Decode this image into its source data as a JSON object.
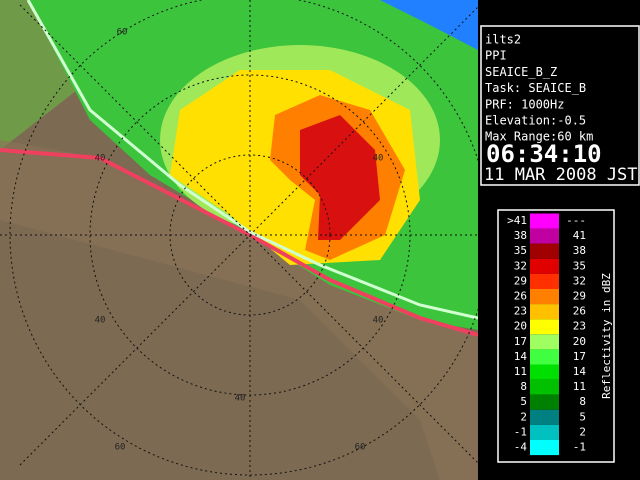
{
  "info": {
    "lines": [
      "ilts2",
      "PPI",
      "SEAICE_B_Z",
      "Task: SEAICE_B",
      "PRF: 1000Hz",
      "Elevation:-0.5",
      "Max Range:60 km"
    ],
    "time": "06:34:10",
    "date": "11 MAR 2008 JST"
  },
  "legend": {
    "title": "Reflectivity in dBZ",
    "items": [
      {
        "low": ">41",
        "high": "---",
        "color": "#ff00ff"
      },
      {
        "low": "38",
        "high": "41",
        "color": "#c000a0"
      },
      {
        "low": "35",
        "high": "38",
        "color": "#a00000"
      },
      {
        "low": "32",
        "high": "35",
        "color": "#e00000"
      },
      {
        "low": "29",
        "high": "32",
        "color": "#ff3000"
      },
      {
        "low": "26",
        "high": "29",
        "color": "#ff8000"
      },
      {
        "low": "23",
        "high": "26",
        "color": "#ffc000"
      },
      {
        "low": "20",
        "high": "23",
        "color": "#ffff00"
      },
      {
        "low": "17",
        "high": "20",
        "color": "#a0ff60"
      },
      {
        "low": "14",
        "high": "17",
        "color": "#40ff40"
      },
      {
        "low": "11",
        "high": "14",
        "color": "#00e000"
      },
      {
        "low": "8",
        "high": "11",
        "color": "#00c000"
      },
      {
        "low": "5",
        "high": "8",
        "color": "#008000"
      },
      {
        "low": "2",
        "high": "5",
        "color": "#008080"
      },
      {
        "low": "-1",
        "high": "2",
        "color": "#00c0c0"
      },
      {
        "low": "-4",
        "high": "-1",
        "color": "#00ffff"
      }
    ]
  },
  "ring_labels": [
    "60",
    "40",
    "40",
    "40",
    "40",
    "60",
    "60",
    "40"
  ]
}
